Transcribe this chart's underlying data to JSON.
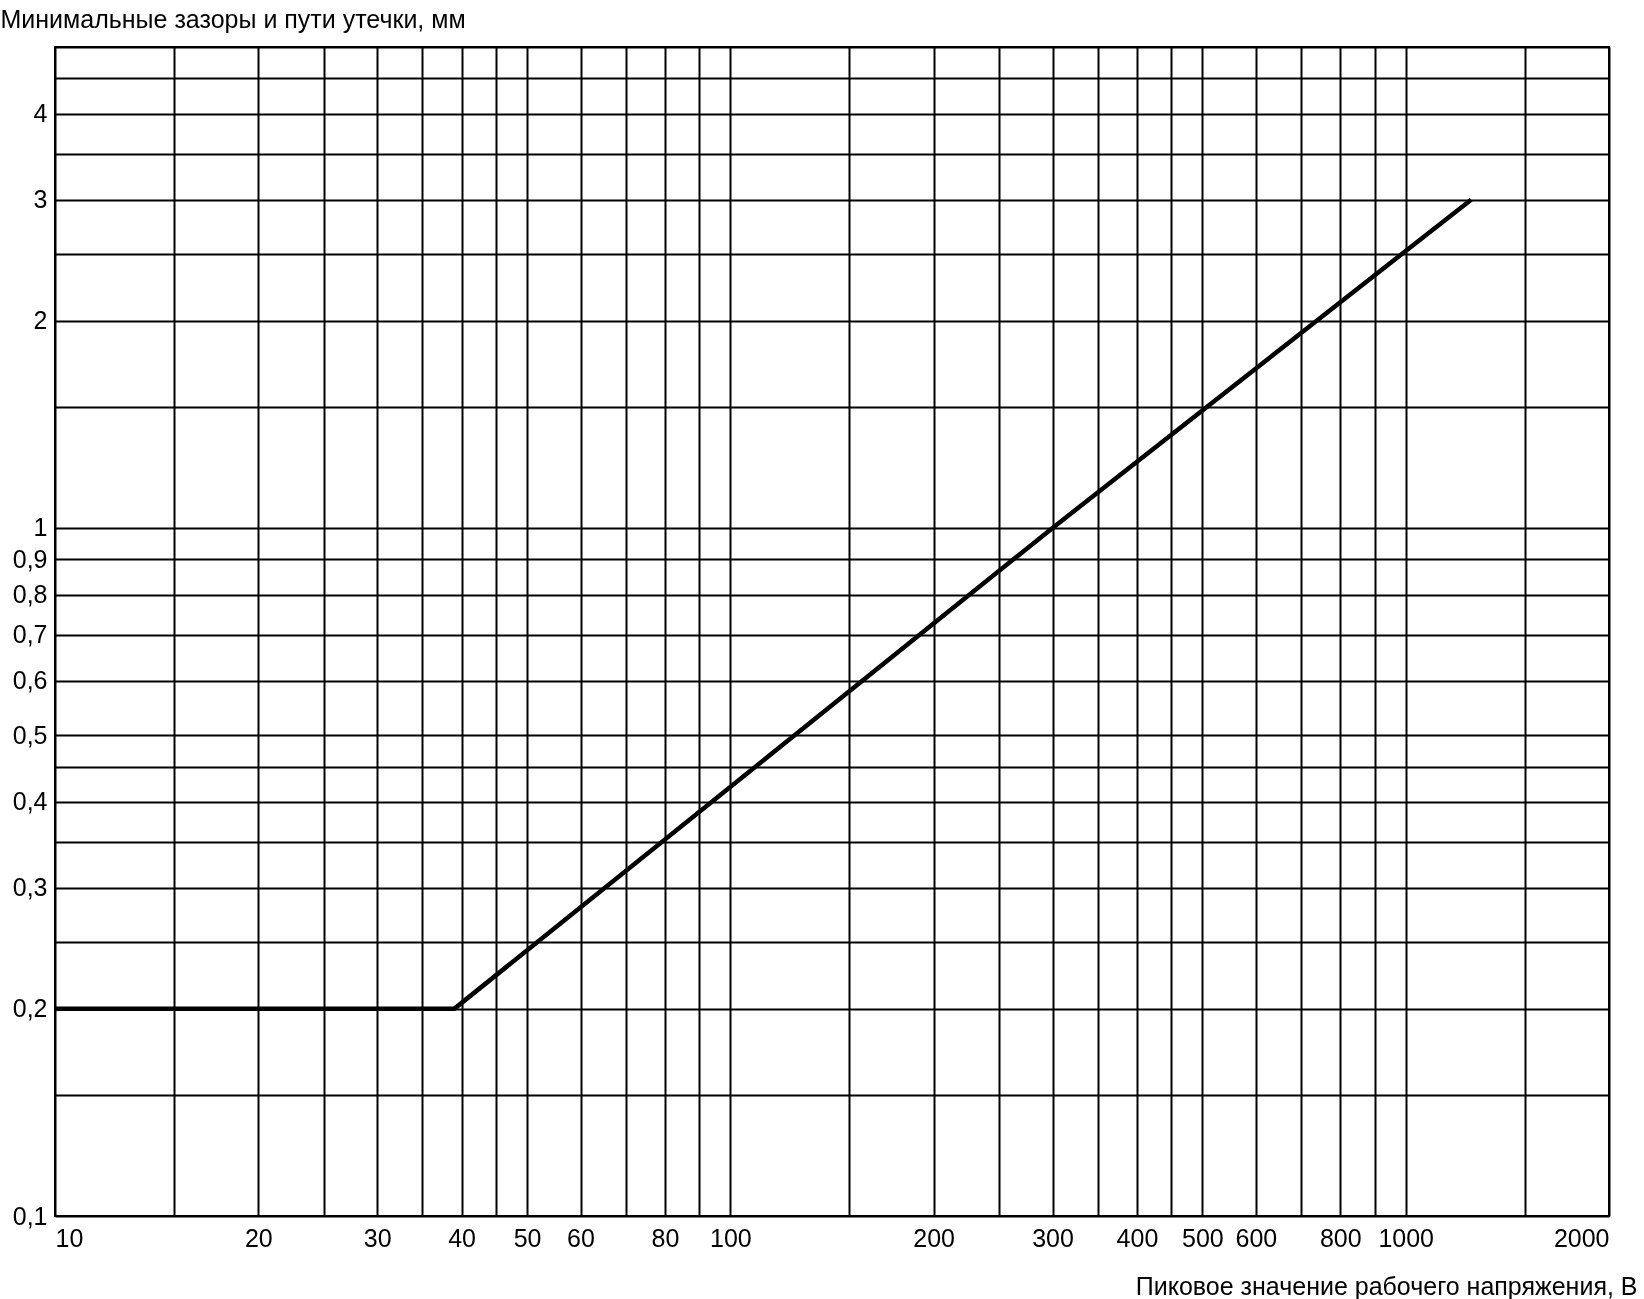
{
  "chart_data": {
    "type": "line",
    "xlabel": "Пиковое значение рабочего напряжения, В",
    "ylabel": "Минимальные зазоры и пути утечки, мм",
    "x": [
      10,
      39,
      300,
      1250
    ],
    "series": [
      {
        "color": "#000000",
        "values": [
          0.2,
          0.2,
          1,
          3
        ]
      }
    ],
    "log": "xy",
    "xlim": [
      10,
      2000
    ],
    "ylim": [
      0.1,
      5
    ],
    "xticks": [
      10,
      {
        "value": 15,
        "label": null
      },
      20,
      {
        "value": 25,
        "label": null
      },
      30,
      {
        "value": 35,
        "label": null
      },
      40,
      {
        "value": 45,
        "label": null
      },
      50,
      60,
      {
        "value": 70,
        "label": null
      },
      80,
      {
        "value": 90,
        "label": null
      },
      100,
      {
        "value": 150,
        "label": null
      },
      200,
      {
        "value": 250,
        "label": null
      },
      300,
      {
        "value": 350,
        "label": null
      },
      400,
      {
        "value": 450,
        "label": null
      },
      500,
      600,
      {
        "value": 700,
        "label": null
      },
      800,
      {
        "value": 900,
        "label": null
      },
      1000,
      {
        "value": 1500,
        "label": null
      },
      2000
    ],
    "yticks": [
      {
        "value": 0.1,
        "label": "0,1"
      },
      {
        "value": 0.15,
        "label": null
      },
      {
        "value": 0.2,
        "label": "0,2"
      },
      {
        "value": 0.25,
        "label": null
      },
      {
        "value": 0.3,
        "label": "0,3"
      },
      {
        "value": 0.35,
        "label": null
      },
      {
        "value": 0.4,
        "label": "0,4"
      },
      {
        "value": 0.45,
        "label": null
      },
      {
        "value": 0.5,
        "label": "0,5"
      },
      {
        "value": 0.6,
        "label": "0,6"
      },
      {
        "value": 0.7,
        "label": "0,7"
      },
      {
        "value": 0.8,
        "label": "0,8"
      },
      {
        "value": 0.9,
        "label": "0,9"
      },
      1,
      {
        "value": 1.5,
        "label": null
      },
      2,
      {
        "value": 2.5,
        "label": null
      },
      3,
      {
        "value": 3.5,
        "label": null
      },
      4,
      {
        "value": 4.5,
        "label": null
      },
      {
        "value": 5,
        "label": null
      }
    ],
    "grid": true,
    "marker": "none",
    "line_style": "solid"
  }
}
